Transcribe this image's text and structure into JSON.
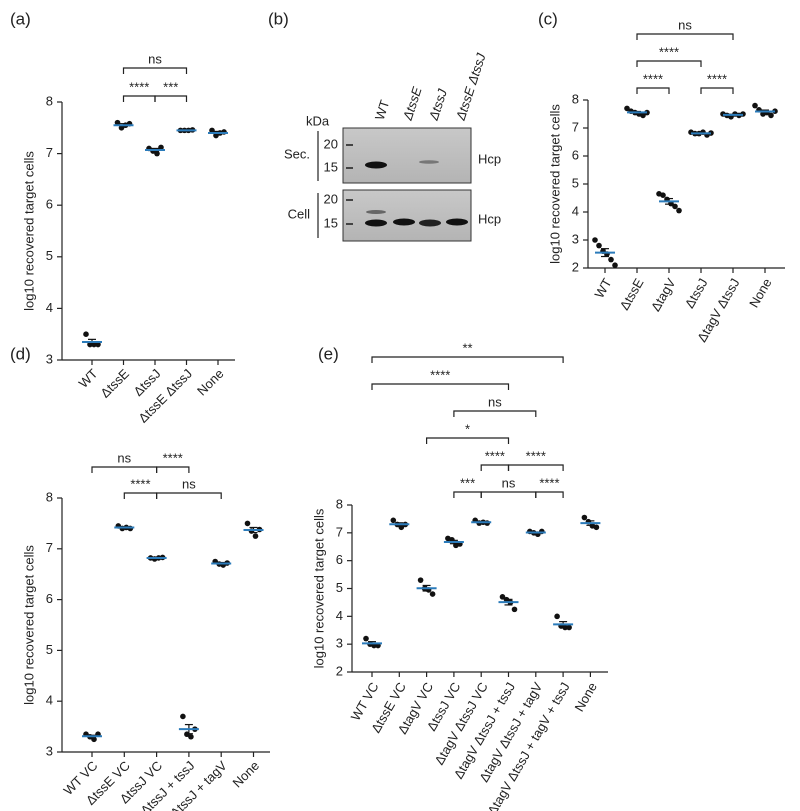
{
  "chart_data": [
    {
      "type": "dot",
      "panel": "(a)",
      "ylabel": "log10 recovered target cells",
      "categories": [
        "WT",
        "ΔtssE",
        "ΔtssJ",
        "ΔtssE ΔtssJ",
        "None"
      ],
      "values": [
        3.35,
        7.55,
        7.07,
        7.45,
        7.4
      ],
      "errors": [
        0.05,
        0.03,
        0.03,
        0.01,
        0.03
      ],
      "points": [
        [
          3.5,
          3.3,
          3.3,
          3.3
        ],
        [
          7.6,
          7.5,
          7.55,
          7.58
        ],
        [
          7.1,
          7.05,
          7.0,
          7.12
        ],
        [
          7.45,
          7.45,
          7.45,
          7.46
        ],
        [
          7.45,
          7.35,
          7.4,
          7.42
        ]
      ],
      "ylim": [
        3,
        8
      ],
      "yticks": [
        3,
        4,
        5,
        6,
        7,
        8
      ],
      "mean_color": "#2b7bba",
      "point_color": "#111111",
      "brackets": [
        {
          "between": [
            "ΔtssE",
            "ΔtssJ"
          ],
          "label": "****"
        },
        {
          "between": [
            "ΔtssJ",
            "ΔtssE ΔtssJ"
          ],
          "label": "***"
        },
        {
          "between": [
            "ΔtssE",
            "ΔtssE ΔtssJ"
          ],
          "label": "ns"
        }
      ]
    },
    {
      "type": "dot",
      "panel": "(c)",
      "ylabel": "log10 recovered target cells",
      "categories": [
        "WT",
        "ΔtssE",
        "ΔtagV",
        "ΔtssJ",
        "ΔtagV ΔtssJ",
        "None"
      ],
      "values": [
        2.55,
        7.56,
        4.38,
        6.81,
        7.47,
        7.59
      ],
      "errors": [
        0.14,
        0.03,
        0.1,
        0.02,
        0.02,
        0.05
      ],
      "points": [
        [
          3.0,
          2.8,
          2.6,
          2.5,
          2.3,
          2.1
        ],
        [
          7.7,
          7.6,
          7.55,
          7.5,
          7.45,
          7.55
        ],
        [
          4.65,
          4.6,
          4.45,
          4.3,
          4.2,
          4.05
        ],
        [
          6.85,
          6.8,
          6.8,
          6.85,
          6.75,
          6.82
        ],
        [
          7.5,
          7.45,
          7.4,
          7.5,
          7.45,
          7.5
        ],
        [
          7.8,
          7.65,
          7.5,
          7.55,
          7.45,
          7.6
        ]
      ],
      "ylim": [
        2,
        8
      ],
      "yticks": [
        2,
        3,
        4,
        5,
        6,
        7,
        8
      ],
      "mean_color": "#2b7bba",
      "point_color": "#111111",
      "brackets": [
        {
          "between": [
            "ΔtssE",
            "ΔtagV"
          ],
          "label": "****"
        },
        {
          "between": [
            "ΔtssJ",
            "ΔtagV ΔtssJ"
          ],
          "label": "****"
        },
        {
          "between": [
            "ΔtssE",
            "ΔtssJ"
          ],
          "label": "****"
        },
        {
          "between": [
            "ΔtssE",
            "ΔtagV ΔtssJ"
          ],
          "label": "ns"
        }
      ]
    },
    {
      "type": "dot",
      "panel": "(d)",
      "ylabel": "log10 recovered target cells",
      "categories": [
        "WT VC",
        "ΔtssE VC",
        "ΔtssJ VC",
        "ΔtssJ + tssJ",
        "ΔtssJ + tagV",
        "None"
      ],
      "values": [
        3.31,
        7.42,
        6.82,
        3.45,
        6.71,
        7.37
      ],
      "errors": [
        0.02,
        0.01,
        0.01,
        0.09,
        0.02,
        0.05
      ],
      "points": [
        [
          3.35,
          3.3,
          3.25,
          3.35
        ],
        [
          7.45,
          7.4,
          7.42,
          7.4
        ],
        [
          6.82,
          6.8,
          6.82,
          6.83
        ],
        [
          3.7,
          3.35,
          3.3,
          3.45
        ],
        [
          6.75,
          6.7,
          6.68,
          6.72
        ],
        [
          7.5,
          7.35,
          7.25,
          7.38
        ]
      ],
      "ylim": [
        3,
        8
      ],
      "yticks": [
        3,
        4,
        5,
        6,
        7,
        8
      ],
      "mean_color": "#2b7bba",
      "point_color": "#111111",
      "brackets": [
        {
          "between": [
            "ΔtssE VC",
            "ΔtssJ VC"
          ],
          "label": "****"
        },
        {
          "between": [
            "ΔtssJ VC",
            "ΔtssJ + tagV"
          ],
          "label": "ns"
        },
        {
          "between": [
            "ΔtssJ VC",
            "ΔtssJ + tssJ"
          ],
          "label": "****"
        },
        {
          "between": [
            "WT VC",
            "ΔtssJ VC"
          ],
          "label": "ns"
        }
      ]
    },
    {
      "type": "dot",
      "panel": "(e)",
      "ylabel": "log10 recovered target cells",
      "categories": [
        "WT VC",
        "ΔtssE VC",
        "ΔtagV VC",
        "ΔtssJ VC",
        "ΔtagV ΔtssJ VC",
        "ΔtagV ΔtssJ + tssJ",
        "ΔtagV ΔtssJ + tagV",
        "ΔtagV ΔtssJ + tagV + tssJ",
        "None"
      ],
      "values": [
        3.03,
        7.31,
        5.01,
        6.67,
        7.38,
        4.51,
        7.01,
        3.71,
        7.35
      ],
      "errors": [
        0.06,
        0.05,
        0.1,
        0.06,
        0.02,
        0.1,
        0.02,
        0.1,
        0.08
      ],
      "points": [
        [
          3.2,
          3.0,
          2.95,
          2.95
        ],
        [
          7.45,
          7.3,
          7.2,
          7.3
        ],
        [
          5.3,
          5.0,
          4.95,
          4.8
        ],
        [
          6.8,
          6.75,
          6.55,
          6.6
        ],
        [
          7.45,
          7.35,
          7.38,
          7.35
        ],
        [
          4.7,
          4.6,
          4.5,
          4.25
        ],
        [
          7.05,
          7.0,
          6.95,
          7.05
        ],
        [
          4.0,
          3.65,
          3.6,
          3.6
        ],
        [
          7.55,
          7.4,
          7.25,
          7.2
        ]
      ],
      "ylim": [
        2,
        8
      ],
      "yticks": [
        2,
        3,
        4,
        5,
        6,
        7,
        8
      ],
      "mean_color": "#2b7bba",
      "point_color": "#111111",
      "brackets": [
        {
          "between": [
            "ΔtssJ VC",
            "ΔtagV ΔtssJ VC"
          ],
          "label": "***"
        },
        {
          "between": [
            "ΔtagV ΔtssJ VC",
            "ΔtagV ΔtssJ + tagV"
          ],
          "label": "ns"
        },
        {
          "between": [
            "ΔtagV ΔtssJ + tagV",
            "ΔtagV ΔtssJ + tagV + tssJ"
          ],
          "label": "****"
        },
        {
          "between": [
            "ΔtagV ΔtssJ VC",
            "ΔtagV ΔtssJ + tssJ"
          ],
          "label": "****"
        },
        {
          "between": [
            "ΔtagV VC",
            "ΔtagV ΔtssJ + tssJ"
          ],
          "label": "*"
        },
        {
          "between": [
            "ΔtagV ΔtssJ + tssJ",
            "ΔtagV ΔtssJ + tagV + tssJ"
          ],
          "label": "****"
        },
        {
          "between": [
            "ΔtssJ VC",
            "ΔtagV ΔtssJ + tagV"
          ],
          "label": "ns"
        },
        {
          "between": [
            "WT VC",
            "ΔtagV ΔtssJ + tssJ"
          ],
          "label": "****"
        },
        {
          "between": [
            "WT VC",
            "ΔtagV ΔtssJ + tagV + tssJ"
          ],
          "label": "**"
        }
      ]
    }
  ],
  "blot": {
    "panel": "(b)",
    "unit": "kDa",
    "lanes": [
      "WT",
      "ΔtssE",
      "ΔtssJ",
      "ΔtssE ΔtssJ"
    ],
    "rows": [
      {
        "name": "Sec.",
        "markers": [
          20,
          15
        ],
        "protein": "Hcp"
      },
      {
        "name": "Cell",
        "markers": [
          20,
          15
        ],
        "protein": "Hcp"
      }
    ]
  }
}
